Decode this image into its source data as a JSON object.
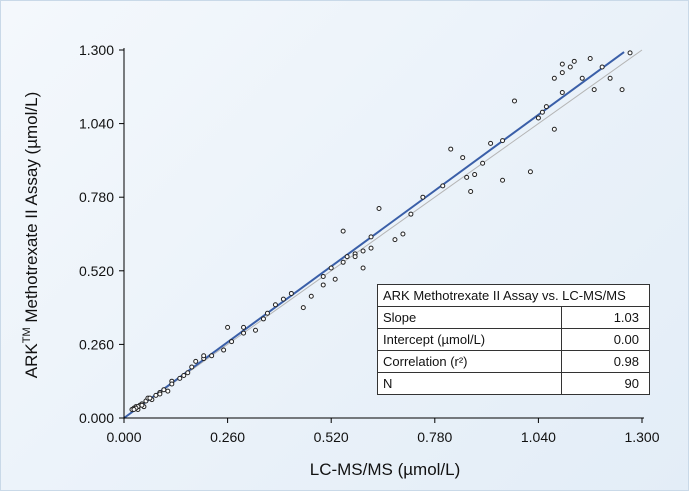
{
  "chart_data": {
    "type": "scatter",
    "title": "",
    "xlabel": "LC-MS/MS (µmol/L)",
    "ylabel_parts": [
      "ARK",
      "TM",
      " Methotrexate II Assay  (µmol/L)"
    ],
    "xlim": [
      0,
      1.3
    ],
    "ylim": [
      0,
      1.3
    ],
    "x_ticks": [
      "0.000",
      "0.260",
      "0.520",
      "0.780",
      "1.040",
      "1.300"
    ],
    "y_ticks": [
      "0.000",
      "0.260",
      "0.520",
      "0.780",
      "1.040",
      "1.300"
    ],
    "grid": false,
    "points": [
      [
        0.02,
        0.03
      ],
      [
        0.025,
        0.035
      ],
      [
        0.03,
        0.04
      ],
      [
        0.035,
        0.03
      ],
      [
        0.04,
        0.045
      ],
      [
        0.045,
        0.05
      ],
      [
        0.05,
        0.04
      ],
      [
        0.055,
        0.06
      ],
      [
        0.06,
        0.07
      ],
      [
        0.07,
        0.065
      ],
      [
        0.08,
        0.08
      ],
      [
        0.09,
        0.09
      ],
      [
        0.1,
        0.1
      ],
      [
        0.11,
        0.095
      ],
      [
        0.12,
        0.13
      ],
      [
        0.14,
        0.14
      ],
      [
        0.16,
        0.16
      ],
      [
        0.17,
        0.18
      ],
      [
        0.18,
        0.2
      ],
      [
        0.2,
        0.21
      ],
      [
        0.22,
        0.22
      ],
      [
        0.25,
        0.24
      ],
      [
        0.27,
        0.27
      ],
      [
        0.26,
        0.32
      ],
      [
        0.3,
        0.3
      ],
      [
        0.33,
        0.31
      ],
      [
        0.35,
        0.35
      ],
      [
        0.36,
        0.37
      ],
      [
        0.38,
        0.4
      ],
      [
        0.45,
        0.39
      ],
      [
        0.42,
        0.44
      ],
      [
        0.47,
        0.43
      ],
      [
        0.5,
        0.47
      ],
      [
        0.52,
        0.53
      ],
      [
        0.53,
        0.49
      ],
      [
        0.55,
        0.55
      ],
      [
        0.56,
        0.57
      ],
      [
        0.58,
        0.58
      ],
      [
        0.6,
        0.53
      ],
      [
        0.62,
        0.6
      ],
      [
        0.64,
        0.74
      ],
      [
        0.62,
        0.64
      ],
      [
        0.68,
        0.63
      ],
      [
        0.7,
        0.65
      ],
      [
        0.72,
        0.72
      ],
      [
        0.75,
        0.78
      ],
      [
        0.8,
        0.82
      ],
      [
        0.82,
        0.95
      ],
      [
        0.85,
        0.92
      ],
      [
        0.86,
        0.85
      ],
      [
        0.87,
        0.8
      ],
      [
        0.88,
        0.86
      ],
      [
        0.9,
        0.9
      ],
      [
        0.92,
        0.97
      ],
      [
        0.95,
        0.98
      ],
      [
        0.95,
        0.84
      ],
      [
        0.98,
        1.12
      ],
      [
        1.02,
        0.87
      ],
      [
        1.04,
        1.06
      ],
      [
        1.05,
        1.08
      ],
      [
        1.06,
        1.1
      ],
      [
        1.08,
        1.02
      ],
      [
        1.1,
        1.15
      ],
      [
        1.1,
        1.22
      ],
      [
        1.12,
        1.24
      ],
      [
        1.13,
        1.26
      ],
      [
        1.15,
        1.2
      ],
      [
        1.17,
        1.27
      ],
      [
        1.18,
        1.16
      ],
      [
        1.2,
        1.24
      ],
      [
        1.22,
        1.2
      ],
      [
        1.25,
        1.16
      ],
      [
        1.27,
        1.29
      ],
      [
        1.08,
        1.2
      ],
      [
        1.1,
        1.25
      ],
      [
        0.55,
        0.66
      ],
      [
        0.58,
        0.57
      ],
      [
        0.6,
        0.59
      ],
      [
        0.5,
        0.5
      ],
      [
        0.4,
        0.42
      ],
      [
        0.3,
        0.32
      ],
      [
        0.2,
        0.22
      ],
      [
        0.15,
        0.15
      ],
      [
        0.12,
        0.12
      ],
      [
        0.09,
        0.085
      ],
      [
        0.065,
        0.07
      ],
      [
        0.045,
        0.045
      ],
      [
        0.035,
        0.04
      ],
      [
        0.03,
        0.035
      ],
      [
        0.025,
        0.03
      ]
    ],
    "regression_line": {
      "slope": 1.03,
      "intercept": 0.0,
      "color": "#3a5fa8"
    },
    "identity_line": {
      "slope": 1,
      "intercept": 0,
      "color": "#b5b5b5"
    },
    "point_color": "#222222",
    "stats_table": {
      "header": "ARK Methotrexate II Assay vs. LC-MS/MS",
      "rows": [
        {
          "label": "Slope",
          "value": "1.03"
        },
        {
          "label": "Intercept (µmol/L)",
          "value": "0.00"
        },
        {
          "label": "Correlation (r²)",
          "value": "0.98"
        },
        {
          "label": "N",
          "value": "90"
        }
      ]
    }
  }
}
